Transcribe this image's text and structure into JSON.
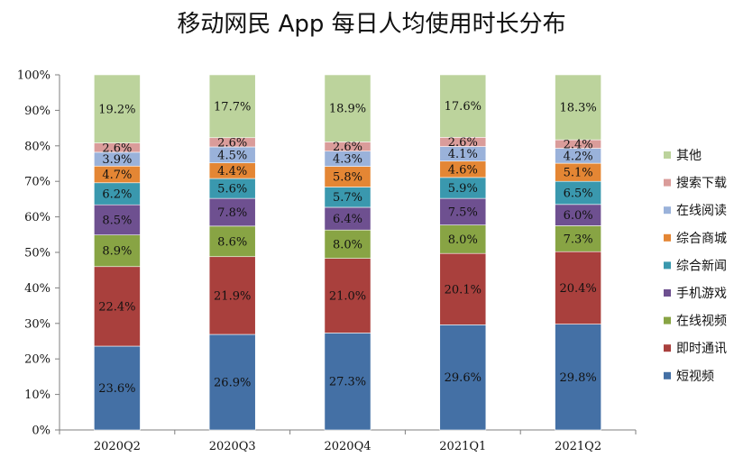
{
  "chart_data": {
    "type": "bar",
    "stacked": true,
    "title": "移动网民 App 每日人均使用时长分布",
    "categories": [
      "2020Q2",
      "2020Q3",
      "2020Q4",
      "2021Q1",
      "2021Q2"
    ],
    "ylim": [
      0,
      100
    ],
    "yticks": [
      "0%",
      "10%",
      "20%",
      "30%",
      "40%",
      "50%",
      "60%",
      "70%",
      "80%",
      "90%",
      "100%"
    ],
    "grid": false,
    "legend_position": "right",
    "series": [
      {
        "name": "短视频",
        "color": "#4470A5",
        "values": [
          23.6,
          26.9,
          27.3,
          29.6,
          29.8
        ],
        "labels": [
          "23.6%",
          "26.9%",
          "27.3%",
          "29.6%",
          "29.8%"
        ]
      },
      {
        "name": "即时通讯",
        "color": "#A9403D",
        "values": [
          22.4,
          21.9,
          21.0,
          20.1,
          20.4
        ],
        "labels": [
          "22.4%",
          "21.9%",
          "21.0%",
          "20.1%",
          "20.4%"
        ]
      },
      {
        "name": "在线视频",
        "color": "#88A444",
        "values": [
          8.9,
          8.6,
          8.0,
          8.0,
          7.3
        ],
        "labels": [
          "8.9%",
          "8.6%",
          "8.0%",
          "8.0%",
          "7.3%"
        ]
      },
      {
        "name": "手机游戏",
        "color": "#6E5090",
        "values": [
          8.5,
          7.8,
          6.4,
          7.5,
          6.0
        ],
        "labels": [
          "8.5%",
          "7.8%",
          "6.4%",
          "7.5%",
          "6.0%"
        ]
      },
      {
        "name": "综合新闻",
        "color": "#3A98AE",
        "values": [
          6.2,
          5.6,
          5.7,
          5.9,
          6.5
        ],
        "labels": [
          "6.2%",
          "5.6%",
          "5.7%",
          "5.9%",
          "6.5%"
        ]
      },
      {
        "name": "综合商城",
        "color": "#E48634",
        "values": [
          4.7,
          4.4,
          5.8,
          4.6,
          5.1
        ],
        "labels": [
          "4.7%",
          "4.4%",
          "5.8%",
          "4.6%",
          "5.1%"
        ]
      },
      {
        "name": "在线阅读",
        "color": "#9AB2DA",
        "values": [
          3.9,
          4.5,
          4.3,
          4.1,
          4.2
        ],
        "labels": [
          "3.9%",
          "4.5%",
          "4.3%",
          "4.1%",
          "4.2%"
        ]
      },
      {
        "name": "搜索下载",
        "color": "#DA9C9A",
        "values": [
          2.6,
          2.6,
          2.6,
          2.6,
          2.4
        ],
        "labels": [
          "2.6%",
          "2.6%",
          "2.6%",
          "2.6%",
          "2.4%"
        ]
      },
      {
        "name": "其他",
        "color": "#BCD39C",
        "values": [
          19.2,
          17.7,
          18.9,
          17.6,
          18.3
        ],
        "labels": [
          "19.2%",
          "17.7%",
          "18.9%",
          "17.6%",
          "18.3%"
        ]
      }
    ]
  }
}
